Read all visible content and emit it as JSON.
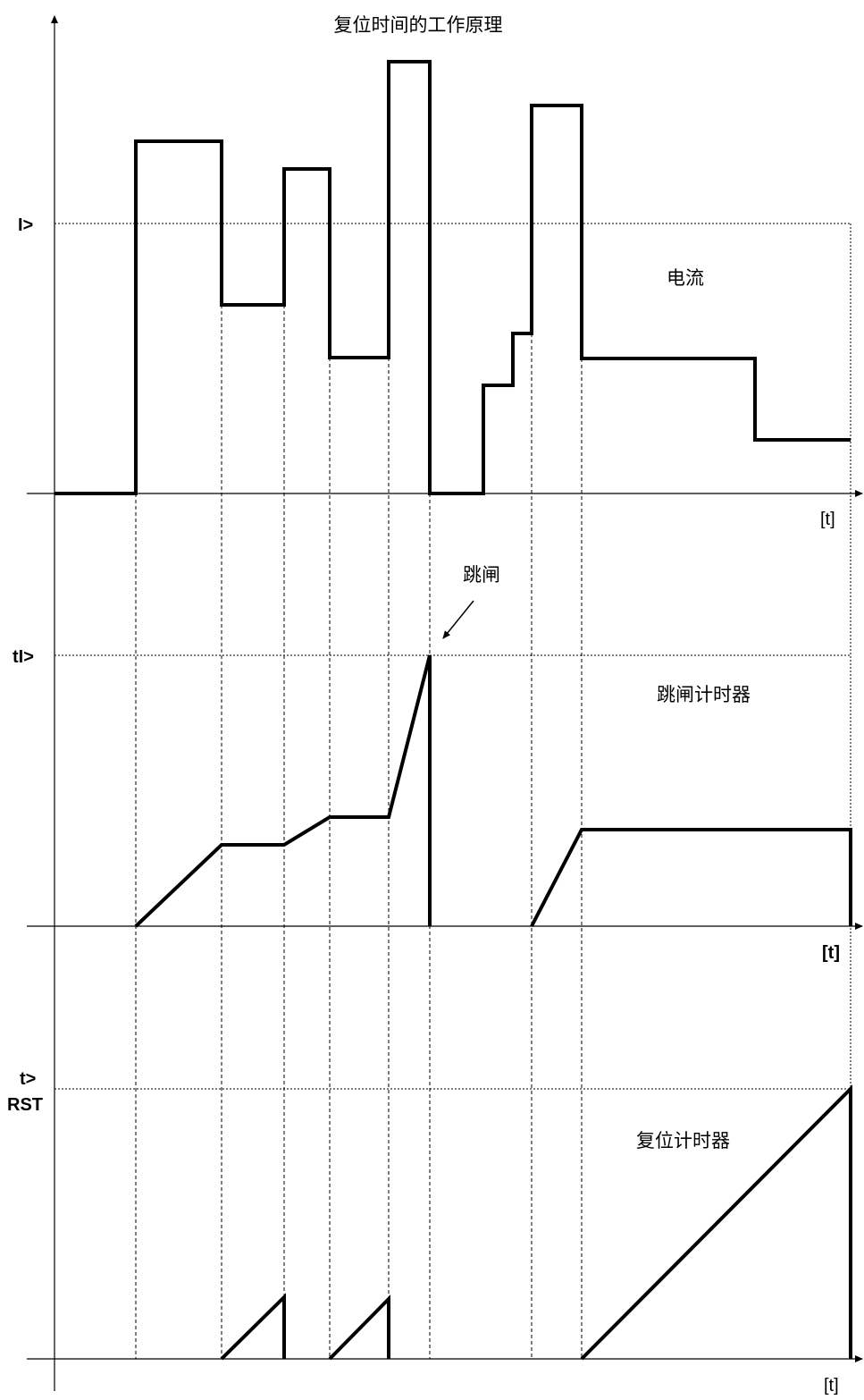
{
  "title": "复位时间的工作原理",
  "colors": {
    "line": "#000000",
    "background": "#ffffff"
  },
  "panels": {
    "current": {
      "threshold_label": "I>",
      "curve_label": "电流",
      "time_axis_label": "[t]"
    },
    "trip_timer": {
      "threshold_label": "tI>",
      "curve_label": "跳闸计时器",
      "time_axis_label": "[t]",
      "trip_annotation": "跳闸"
    },
    "reset_timer": {
      "threshold_label_line1": "t>",
      "threshold_label_line2": "RST",
      "curve_label": "复位计时器",
      "time_axis_label": "[t]"
    }
  }
}
